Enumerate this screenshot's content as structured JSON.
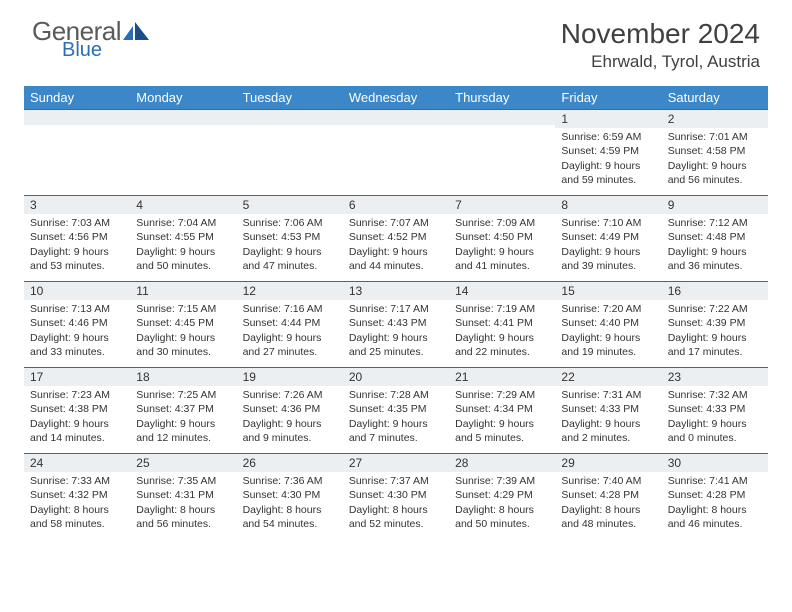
{
  "logo": {
    "word1": "General",
    "word2": "Blue"
  },
  "title": "November 2024",
  "location": "Ehrwald, Tyrol, Austria",
  "header_bg": "#3c87c7",
  "header_text_color": "#ffffff",
  "daybar_bg": "#eceff2",
  "daybar_border": "#3c6a94",
  "text_color": "#333333",
  "weekdays": [
    "Sunday",
    "Monday",
    "Tuesday",
    "Wednesday",
    "Thursday",
    "Friday",
    "Saturday"
  ],
  "weeks": [
    [
      {
        "n": "",
        "sunrise": "",
        "sunset": "",
        "daylight": ""
      },
      {
        "n": "",
        "sunrise": "",
        "sunset": "",
        "daylight": ""
      },
      {
        "n": "",
        "sunrise": "",
        "sunset": "",
        "daylight": ""
      },
      {
        "n": "",
        "sunrise": "",
        "sunset": "",
        "daylight": ""
      },
      {
        "n": "",
        "sunrise": "",
        "sunset": "",
        "daylight": ""
      },
      {
        "n": "1",
        "sunrise": "Sunrise: 6:59 AM",
        "sunset": "Sunset: 4:59 PM",
        "daylight": "Daylight: 9 hours and 59 minutes."
      },
      {
        "n": "2",
        "sunrise": "Sunrise: 7:01 AM",
        "sunset": "Sunset: 4:58 PM",
        "daylight": "Daylight: 9 hours and 56 minutes."
      }
    ],
    [
      {
        "n": "3",
        "sunrise": "Sunrise: 7:03 AM",
        "sunset": "Sunset: 4:56 PM",
        "daylight": "Daylight: 9 hours and 53 minutes."
      },
      {
        "n": "4",
        "sunrise": "Sunrise: 7:04 AM",
        "sunset": "Sunset: 4:55 PM",
        "daylight": "Daylight: 9 hours and 50 minutes."
      },
      {
        "n": "5",
        "sunrise": "Sunrise: 7:06 AM",
        "sunset": "Sunset: 4:53 PM",
        "daylight": "Daylight: 9 hours and 47 minutes."
      },
      {
        "n": "6",
        "sunrise": "Sunrise: 7:07 AM",
        "sunset": "Sunset: 4:52 PM",
        "daylight": "Daylight: 9 hours and 44 minutes."
      },
      {
        "n": "7",
        "sunrise": "Sunrise: 7:09 AM",
        "sunset": "Sunset: 4:50 PM",
        "daylight": "Daylight: 9 hours and 41 minutes."
      },
      {
        "n": "8",
        "sunrise": "Sunrise: 7:10 AM",
        "sunset": "Sunset: 4:49 PM",
        "daylight": "Daylight: 9 hours and 39 minutes."
      },
      {
        "n": "9",
        "sunrise": "Sunrise: 7:12 AM",
        "sunset": "Sunset: 4:48 PM",
        "daylight": "Daylight: 9 hours and 36 minutes."
      }
    ],
    [
      {
        "n": "10",
        "sunrise": "Sunrise: 7:13 AM",
        "sunset": "Sunset: 4:46 PM",
        "daylight": "Daylight: 9 hours and 33 minutes."
      },
      {
        "n": "11",
        "sunrise": "Sunrise: 7:15 AM",
        "sunset": "Sunset: 4:45 PM",
        "daylight": "Daylight: 9 hours and 30 minutes."
      },
      {
        "n": "12",
        "sunrise": "Sunrise: 7:16 AM",
        "sunset": "Sunset: 4:44 PM",
        "daylight": "Daylight: 9 hours and 27 minutes."
      },
      {
        "n": "13",
        "sunrise": "Sunrise: 7:17 AM",
        "sunset": "Sunset: 4:43 PM",
        "daylight": "Daylight: 9 hours and 25 minutes."
      },
      {
        "n": "14",
        "sunrise": "Sunrise: 7:19 AM",
        "sunset": "Sunset: 4:41 PM",
        "daylight": "Daylight: 9 hours and 22 minutes."
      },
      {
        "n": "15",
        "sunrise": "Sunrise: 7:20 AM",
        "sunset": "Sunset: 4:40 PM",
        "daylight": "Daylight: 9 hours and 19 minutes."
      },
      {
        "n": "16",
        "sunrise": "Sunrise: 7:22 AM",
        "sunset": "Sunset: 4:39 PM",
        "daylight": "Daylight: 9 hours and 17 minutes."
      }
    ],
    [
      {
        "n": "17",
        "sunrise": "Sunrise: 7:23 AM",
        "sunset": "Sunset: 4:38 PM",
        "daylight": "Daylight: 9 hours and 14 minutes."
      },
      {
        "n": "18",
        "sunrise": "Sunrise: 7:25 AM",
        "sunset": "Sunset: 4:37 PM",
        "daylight": "Daylight: 9 hours and 12 minutes."
      },
      {
        "n": "19",
        "sunrise": "Sunrise: 7:26 AM",
        "sunset": "Sunset: 4:36 PM",
        "daylight": "Daylight: 9 hours and 9 minutes."
      },
      {
        "n": "20",
        "sunrise": "Sunrise: 7:28 AM",
        "sunset": "Sunset: 4:35 PM",
        "daylight": "Daylight: 9 hours and 7 minutes."
      },
      {
        "n": "21",
        "sunrise": "Sunrise: 7:29 AM",
        "sunset": "Sunset: 4:34 PM",
        "daylight": "Daylight: 9 hours and 5 minutes."
      },
      {
        "n": "22",
        "sunrise": "Sunrise: 7:31 AM",
        "sunset": "Sunset: 4:33 PM",
        "daylight": "Daylight: 9 hours and 2 minutes."
      },
      {
        "n": "23",
        "sunrise": "Sunrise: 7:32 AM",
        "sunset": "Sunset: 4:33 PM",
        "daylight": "Daylight: 9 hours and 0 minutes."
      }
    ],
    [
      {
        "n": "24",
        "sunrise": "Sunrise: 7:33 AM",
        "sunset": "Sunset: 4:32 PM",
        "daylight": "Daylight: 8 hours and 58 minutes."
      },
      {
        "n": "25",
        "sunrise": "Sunrise: 7:35 AM",
        "sunset": "Sunset: 4:31 PM",
        "daylight": "Daylight: 8 hours and 56 minutes."
      },
      {
        "n": "26",
        "sunrise": "Sunrise: 7:36 AM",
        "sunset": "Sunset: 4:30 PM",
        "daylight": "Daylight: 8 hours and 54 minutes."
      },
      {
        "n": "27",
        "sunrise": "Sunrise: 7:37 AM",
        "sunset": "Sunset: 4:30 PM",
        "daylight": "Daylight: 8 hours and 52 minutes."
      },
      {
        "n": "28",
        "sunrise": "Sunrise: 7:39 AM",
        "sunset": "Sunset: 4:29 PM",
        "daylight": "Daylight: 8 hours and 50 minutes."
      },
      {
        "n": "29",
        "sunrise": "Sunrise: 7:40 AM",
        "sunset": "Sunset: 4:28 PM",
        "daylight": "Daylight: 8 hours and 48 minutes."
      },
      {
        "n": "30",
        "sunrise": "Sunrise: 7:41 AM",
        "sunset": "Sunset: 4:28 PM",
        "daylight": "Daylight: 8 hours and 46 minutes."
      }
    ]
  ]
}
